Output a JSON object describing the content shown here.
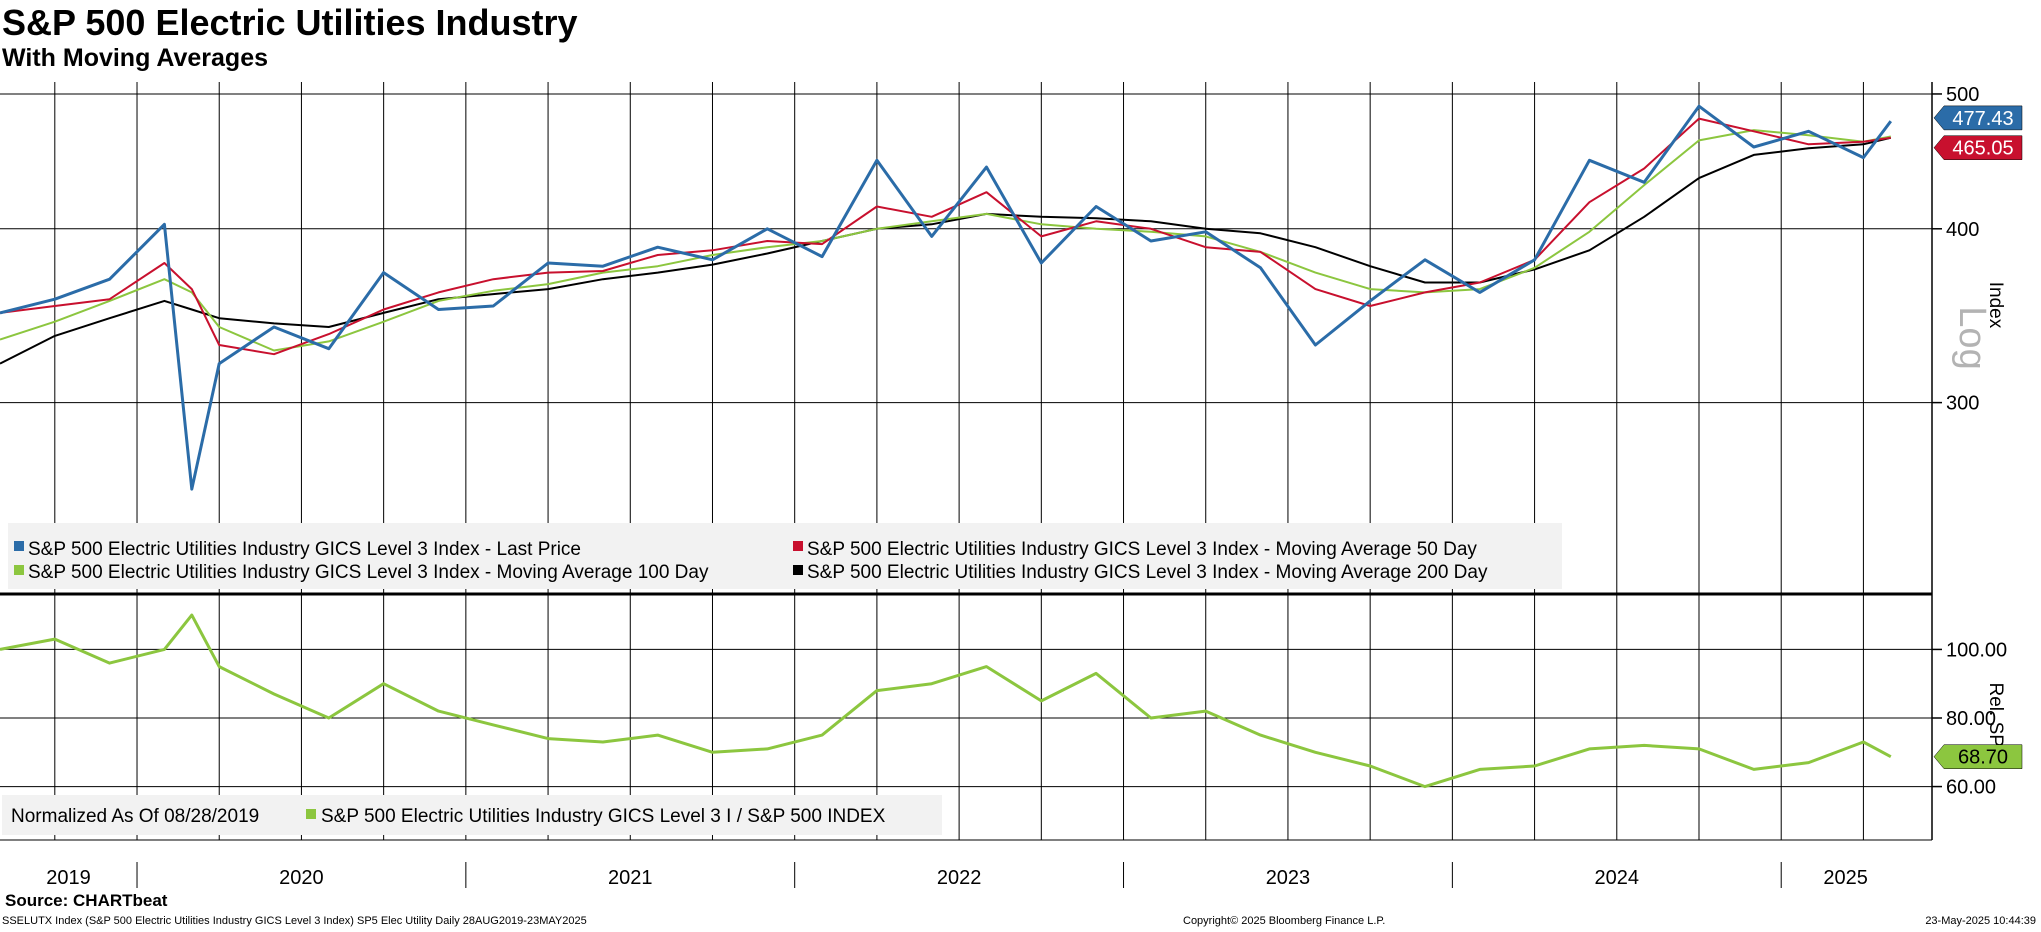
{
  "header": {
    "title": "S&P 500 Electric Utilities Industry",
    "subtitle": "With Moving Averages"
  },
  "footer": {
    "source": "Source: CHARTbeat",
    "description": "SSELUTX Index (S&P 500 Electric Utilities Industry GICS Level 3 Index) SP5 Elec Utility  Daily 28AUG2019-23MAY2025",
    "copyright": "Copyright© 2025 Bloomberg Finance L.P.",
    "timestamp": "23-May-2025 10:44:39"
  },
  "colors": {
    "last_price": "#2b6ca8",
    "ma50": "#c8102e",
    "ma100": "#8cc63f",
    "ma200": "#000000",
    "relative": "#8cc63f",
    "grid": "#000000",
    "legend_bg": "#f2f2f2"
  },
  "chart_data": [
    {
      "type": "line",
      "title": "S&P 500 Electric Utilities Industry",
      "subtitle": "With Moving Averages",
      "scale": "Log",
      "ylabel": "Index",
      "ylim": [
        220,
        510
      ],
      "yticks": [
        "500",
        "400",
        "300"
      ],
      "x": [
        "2019-08",
        "2019-10",
        "2019-12",
        "2020-02",
        "2020-03",
        "2020-04",
        "2020-06",
        "2020-08",
        "2020-10",
        "2020-12",
        "2021-02",
        "2021-04",
        "2021-06",
        "2021-08",
        "2021-10",
        "2021-12",
        "2022-02",
        "2022-04",
        "2022-06",
        "2022-08",
        "2022-10",
        "2022-12",
        "2023-02",
        "2023-04",
        "2023-06",
        "2023-08",
        "2023-10",
        "2023-12",
        "2024-02",
        "2024-04",
        "2024-06",
        "2024-08",
        "2024-10",
        "2024-12",
        "2025-02",
        "2025-04",
        "2025-05"
      ],
      "xaxis_labels": [
        "2019",
        "2020",
        "2021",
        "2022",
        "2023",
        "2024",
        "2025"
      ],
      "series": [
        {
          "name": "S&P 500 Electric Utilities Industry GICS Level 3 Index - Last Price",
          "color_key": "last_price",
          "width": 3,
          "values": [
            348,
            356,
            368,
            403,
            260,
            320,
            340,
            328,
            372,
            350,
            352,
            378,
            376,
            388,
            380,
            400,
            382,
            448,
            395,
            443,
            378,
            415,
            392,
            398,
            375,
            330,
            355,
            380,
            360,
            380,
            448,
            432,
            490,
            458,
            470,
            450,
            478
          ]
        },
        {
          "name": "S&P 500 Electric Utilities Industry GICS Level 3 Index - Moving Average 50 Day",
          "color_key": "ma50",
          "width": 2,
          "values": [
            348,
            352,
            356,
            378,
            362,
            330,
            325,
            336,
            350,
            360,
            368,
            372,
            373,
            383,
            386,
            392,
            390,
            415,
            408,
            425,
            395,
            405,
            400,
            388,
            385,
            362,
            352,
            360,
            366,
            380,
            418,
            442,
            480,
            470,
            460,
            462,
            465
          ]
        },
        {
          "name": "S&P 500 Electric Utilities Industry GICS Level 3 Index - Moving Average 100 Day",
          "color_key": "ma100",
          "width": 2,
          "values": [
            333,
            343,
            355,
            368,
            360,
            340,
            327,
            332,
            343,
            355,
            361,
            365,
            372,
            376,
            383,
            388,
            392,
            400,
            405,
            410,
            403,
            400,
            398,
            395,
            385,
            372,
            362,
            360,
            362,
            375,
            398,
            430,
            463,
            471,
            467,
            462,
            466
          ]
        },
        {
          "name": "S&P 500 Electric Utilities Industry GICS Level 3 Index - Moving Average 200 Day",
          "color_key": "ma200",
          "width": 2,
          "values": [
            320,
            335,
            345,
            355,
            350,
            345,
            342,
            340,
            348,
            356,
            359,
            362,
            368,
            372,
            377,
            384,
            392,
            400,
            403,
            410,
            408,
            407,
            405,
            400,
            397,
            388,
            376,
            366,
            366,
            374,
            386,
            408,
            435,
            452,
            457,
            460,
            465
          ]
        }
      ],
      "value_labels": [
        {
          "text": "477.43",
          "value": 477.43,
          "color_key": "last_price"
        },
        {
          "text": "465.05",
          "value": 465.05,
          "color_key": "ma50"
        }
      ],
      "legend": [
        "S&P 500 Electric Utilities Industry GICS Level 3 Index - Last Price",
        "S&P 500 Electric Utilities Industry GICS Level 3 Index - Moving Average 50 Day",
        "S&P 500 Electric Utilities Industry GICS Level 3 Index - Moving Average 100 Day",
        "S&P 500 Electric Utilities Industry GICS Level 3 Index - Moving Average 200 Day"
      ],
      "legend_placement": "bottom-left"
    },
    {
      "type": "line",
      "ylabel": "Rel. SP5",
      "ylim": [
        45,
        115
      ],
      "yticks": [
        "100.00",
        "80.00",
        "60.00"
      ],
      "note": "Normalized As Of 08/28/2019",
      "x": [
        "2019-08",
        "2019-10",
        "2019-12",
        "2020-02",
        "2020-03",
        "2020-04",
        "2020-06",
        "2020-08",
        "2020-10",
        "2020-12",
        "2021-02",
        "2021-04",
        "2021-06",
        "2021-08",
        "2021-10",
        "2021-12",
        "2022-02",
        "2022-04",
        "2022-06",
        "2022-08",
        "2022-10",
        "2022-12",
        "2023-02",
        "2023-04",
        "2023-06",
        "2023-08",
        "2023-10",
        "2023-12",
        "2024-02",
        "2024-04",
        "2024-06",
        "2024-08",
        "2024-10",
        "2024-12",
        "2025-02",
        "2025-04",
        "2025-05"
      ],
      "series": [
        {
          "name": "S&P 500 Electric Utilities Industry GICS Level 3 I / S&P 500 INDEX",
          "color_key": "relative",
          "width": 3,
          "values": [
            100,
            103,
            96,
            100,
            110,
            95,
            87,
            80,
            90,
            82,
            78,
            74,
            73,
            75,
            70,
            71,
            75,
            88,
            90,
            95,
            85,
            93,
            80,
            82,
            75,
            70,
            66,
            60,
            65,
            66,
            71,
            72,
            71,
            65,
            67,
            73,
            68.7
          ]
        }
      ],
      "value_labels": [
        {
          "text": "68.70",
          "value": 68.7,
          "color_key": "relative"
        }
      ],
      "legend": [
        "S&P 500 Electric Utilities Industry GICS Level 3 I / S&P 500 INDEX"
      ]
    }
  ]
}
